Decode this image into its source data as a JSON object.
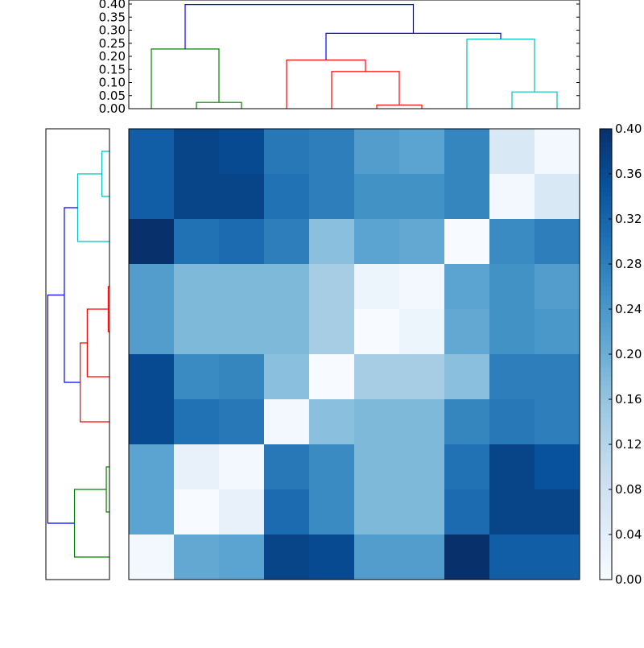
{
  "chart_data": [
    {
      "type": "dendrogram",
      "orientation": "top",
      "leaf_order": [
        0,
        1,
        2,
        3,
        4,
        5,
        6,
        7,
        8,
        9
      ],
      "links": [
        {
          "left": [
            2.5,
            0.024
          ],
          "right": [
            2.5,
            0.024
          ],
          "a": 2,
          "b": 3,
          "height": 0.024,
          "color": "#008000"
        },
        {
          "left": [
            1.0,
            0.0
          ],
          "right": [
            2.5,
            0.024
          ],
          "a": 1,
          "b": 2.5,
          "height": 0.228,
          "color": "#008000"
        },
        {
          "a": 7,
          "b": 8,
          "height": 0.014,
          "color": "#ff0000"
        },
        {
          "a": 6,
          "b": 7.5,
          "height": 0.142,
          "color": "#ff0000"
        },
        {
          "a": 5,
          "b": 6.75,
          "height": 0.186,
          "color": "#ff0000"
        },
        {
          "a": 11,
          "b": 12,
          "height": 0.064,
          "color": "#00bfbf"
        },
        {
          "a": 10,
          "b": 11.5,
          "height": 0.266,
          "color": "#00bfbf"
        },
        {
          "a": 5.875,
          "b": 10.75,
          "height": 0.288,
          "color": "#0000ff"
        },
        {
          "a": 1.75,
          "b": 8.3125,
          "height": 0.398,
          "color": "#0000ff"
        }
      ],
      "ylim": [
        0,
        0.4
      ],
      "yticks": [
        "0.00",
        "0.05",
        "0.10",
        "0.15",
        "0.20",
        "0.25",
        "0.30",
        "0.35",
        "0.40"
      ]
    },
    {
      "type": "dendrogram",
      "orientation": "left",
      "links": [
        {
          "a": 0,
          "b": 1,
          "height": 0.02,
          "color": "#00bfbf"
        },
        {
          "a": -0.5,
          "b": 0.5,
          "height": 0.068,
          "color": "#00bfbf"
        },
        {
          "a": 3,
          "b": 4,
          "height": 0.002,
          "color": "#ff0000"
        },
        {
          "a": 3.5,
          "b": 5,
          "height": 0.036,
          "color": "#ff0000"
        },
        {
          "a": 4.25,
          "b": 6,
          "height": 0.046,
          "color": "#ff0000"
        },
        {
          "a": 0,
          "b": 5.125,
          "height": 0.073,
          "color": "#0000ff"
        },
        {
          "a": 7,
          "b": 8,
          "height": 0.005,
          "color": "#008000"
        },
        {
          "a": 7.5,
          "b": 9,
          "height": 0.055,
          "color": "#008000"
        },
        {
          "a": 2.56,
          "b": 8.25,
          "height": 0.097,
          "color": "#0000ff"
        }
      ],
      "xlim": [
        0.1,
        0
      ]
    },
    {
      "type": "heatmap",
      "colormap": "Blues",
      "vmin": 0.0,
      "vmax": 0.4,
      "colorbar_ticks": [
        "0.00",
        "0.04",
        "0.08",
        "0.12",
        "0.16",
        "0.20",
        "0.24",
        "0.28",
        "0.32",
        "0.36",
        "0.40"
      ],
      "values": [
        [
          0.33,
          0.37,
          0.36,
          0.29,
          0.28,
          0.23,
          0.22,
          0.27,
          0.06,
          0.01
        ],
        [
          0.33,
          0.37,
          0.37,
          0.3,
          0.28,
          0.25,
          0.25,
          0.27,
          0.01,
          0.06
        ],
        [
          0.4,
          0.3,
          0.31,
          0.28,
          0.17,
          0.22,
          0.21,
          0.0,
          0.26,
          0.28
        ],
        [
          0.23,
          0.18,
          0.18,
          0.18,
          0.14,
          0.02,
          0.01,
          0.22,
          0.25,
          0.23
        ],
        [
          0.23,
          0.18,
          0.18,
          0.18,
          0.14,
          0.0,
          0.02,
          0.21,
          0.25,
          0.24
        ],
        [
          0.36,
          0.26,
          0.27,
          0.17,
          0.0,
          0.14,
          0.14,
          0.17,
          0.28,
          0.28
        ],
        [
          0.36,
          0.3,
          0.29,
          0.01,
          0.17,
          0.18,
          0.18,
          0.27,
          0.29,
          0.28
        ],
        [
          0.22,
          0.03,
          0.01,
          0.29,
          0.26,
          0.18,
          0.18,
          0.3,
          0.37,
          0.35
        ],
        [
          0.22,
          0.0,
          0.03,
          0.31,
          0.26,
          0.18,
          0.18,
          0.31,
          0.37,
          0.37
        ],
        [
          0.01,
          0.21,
          0.22,
          0.37,
          0.36,
          0.23,
          0.23,
          0.4,
          0.33,
          0.33
        ]
      ]
    }
  ],
  "colors": {
    "colorbar_low": "#f7fbff",
    "colorbar_high": "#08306b"
  }
}
